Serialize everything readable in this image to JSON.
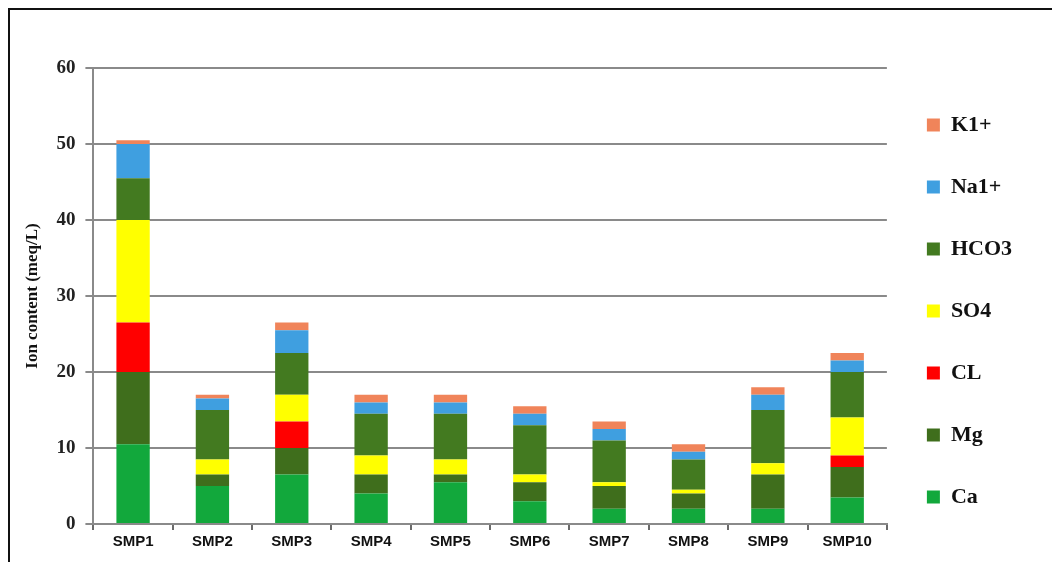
{
  "chart_data": {
    "type": "bar",
    "stacked": true,
    "ylabel": "Ion content (meq/L)",
    "categories": [
      "SMP1",
      "SMP2",
      "SMP3",
      "SMP4",
      "SMP5",
      "SMP6",
      "SMP7",
      "SMP8",
      "SMP9",
      "SMP10"
    ],
    "series": [
      {
        "name": "Ca",
        "color": "#12a83c",
        "values": [
          10.5,
          5,
          6.5,
          4,
          5.5,
          3,
          2,
          2,
          2,
          3.5
        ]
      },
      {
        "name": "Mg",
        "color": "#3f6e1c",
        "values": [
          9.5,
          1.5,
          3.5,
          2.5,
          1,
          2.5,
          3,
          2,
          4.5,
          4
        ]
      },
      {
        "name": "CL",
        "color": "#ff0000",
        "values": [
          6.5,
          0,
          3.5,
          0,
          0,
          0,
          0,
          0,
          0,
          1.5
        ]
      },
      {
        "name": "SO4",
        "color": "#ffff00",
        "values": [
          13.5,
          2,
          3.5,
          2.5,
          2,
          1,
          0.5,
          0.5,
          1.5,
          5
        ]
      },
      {
        "name": "HCO3",
        "color": "#437a20",
        "values": [
          5.5,
          6.5,
          5.5,
          5.5,
          6,
          6.5,
          5.5,
          4,
          7,
          6
        ]
      },
      {
        "name": "Na1+",
        "color": "#3f9fe0",
        "values": [
          4.5,
          1.5,
          3,
          1.5,
          1.5,
          1.5,
          1.5,
          1,
          2,
          1.5
        ]
      },
      {
        "name": "K1+",
        "color": "#f0845a",
        "values": [
          0.5,
          0.5,
          1,
          1,
          1,
          1,
          1,
          1,
          1,
          1
        ]
      }
    ],
    "ylim": [
      0,
      60
    ],
    "yticks": [
      0,
      10,
      20,
      30,
      40,
      50,
      60
    ],
    "grid": "y",
    "legend": "right"
  }
}
